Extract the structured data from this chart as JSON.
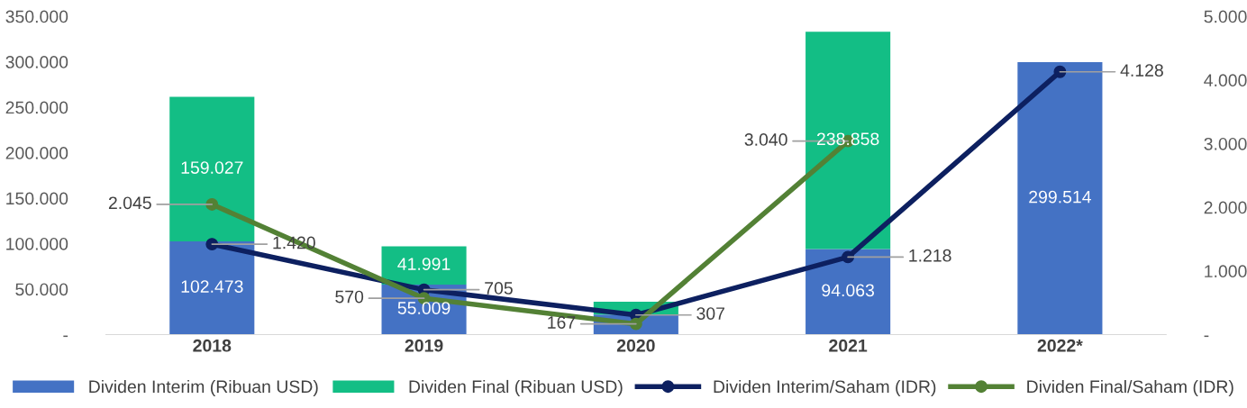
{
  "chart_data": {
    "type": "bar",
    "stacked": true,
    "categories": [
      "2018",
      "2019",
      "2020",
      "2021",
      "2022*"
    ],
    "series": [
      {
        "name": "Dividen Interim (Ribuan USD)",
        "color": "#4472c4",
        "values": [
          102473,
          55009,
          22000,
          94063,
          299514
        ],
        "value_labels": [
          "102.473",
          "55.009",
          null,
          "94.063",
          "299.514"
        ]
      },
      {
        "name": "Dividen Final (Ribuan USD)",
        "color": "#13be85",
        "values": [
          159027,
          41991,
          14000,
          238858,
          null
        ],
        "value_labels": [
          "159.027",
          "41.991",
          null,
          "238.858",
          null
        ]
      },
      {
        "name": "Dividen Interim/Saham (IDR)",
        "type": "line",
        "axis": "y2",
        "color": "#0d2060",
        "values": [
          1420,
          705,
          307,
          1218,
          4128
        ],
        "value_labels": [
          "1.420",
          "705",
          "307",
          "1.218",
          "4.128"
        ]
      },
      {
        "name": "Dividen Final/Saham (IDR)",
        "type": "line",
        "axis": "y2",
        "color": "#538135",
        "values": [
          2045,
          570,
          167,
          3040,
          null
        ],
        "value_labels": [
          "2.045",
          "570",
          "167",
          "3.040",
          null
        ]
      }
    ],
    "ylim": [
      0,
      350000
    ],
    "yticks": [
      {
        "value": 0,
        "label": "-"
      },
      {
        "value": 50000,
        "label": "50.000"
      },
      {
        "value": 100000,
        "label": "100.000"
      },
      {
        "value": 150000,
        "label": "150.000"
      },
      {
        "value": 200000,
        "label": "200.000"
      },
      {
        "value": 250000,
        "label": "250.000"
      },
      {
        "value": 300000,
        "label": "300.000"
      },
      {
        "value": 350000,
        "label": "350.000"
      }
    ],
    "y2lim": [
      0,
      5000
    ],
    "y2ticks": [
      {
        "value": 0,
        "label": "-"
      },
      {
        "value": 1000,
        "label": "1.000"
      },
      {
        "value": 2000,
        "label": "2.000"
      },
      {
        "value": 3000,
        "label": "3.000"
      },
      {
        "value": 4000,
        "label": "4.000"
      },
      {
        "value": 5000,
        "label": "5.000"
      }
    ],
    "marker": "circle",
    "line_style": "solid",
    "grid": false,
    "legend": "bottom"
  }
}
